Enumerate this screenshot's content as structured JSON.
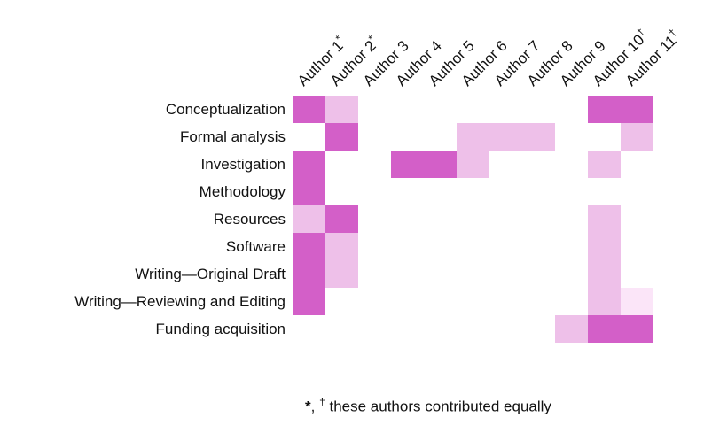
{
  "chart_data": {
    "type": "heatmap",
    "title": "",
    "columns": [
      {
        "name": "Author 1",
        "marker": "*"
      },
      {
        "name": "Author 2",
        "marker": "*"
      },
      {
        "name": "Author 3",
        "marker": ""
      },
      {
        "name": "Author 4",
        "marker": ""
      },
      {
        "name": "Author 5",
        "marker": ""
      },
      {
        "name": "Author 6",
        "marker": ""
      },
      {
        "name": "Author 7",
        "marker": ""
      },
      {
        "name": "Author 8",
        "marker": ""
      },
      {
        "name": "Author 9",
        "marker": ""
      },
      {
        "name": "Author 10",
        "marker": "†"
      },
      {
        "name": "Author 11",
        "marker": "†"
      }
    ],
    "rows": [
      "Conceptualization",
      "Formal analysis",
      "Investigation",
      "Methodology",
      "Resources",
      "Software",
      "Writing—Original Draft",
      "Writing—Reviewing and Editing",
      "Funding acquisition"
    ],
    "values": [
      [
        3,
        2,
        0,
        0,
        0,
        0,
        0,
        0,
        0,
        3,
        3
      ],
      [
        0,
        3,
        0,
        0,
        0,
        2,
        2,
        2,
        0,
        0,
        2
      ],
      [
        3,
        0,
        0,
        3,
        3,
        2,
        0,
        0,
        0,
        2,
        0
      ],
      [
        3,
        0,
        0,
        0,
        0,
        0,
        0,
        0,
        0,
        0,
        0
      ],
      [
        2,
        3,
        0,
        0,
        0,
        0,
        0,
        0,
        0,
        2,
        0
      ],
      [
        3,
        2,
        0,
        0,
        0,
        0,
        0,
        0,
        0,
        2,
        0
      ],
      [
        3,
        2,
        0,
        0,
        0,
        0,
        0,
        0,
        0,
        2,
        0
      ],
      [
        3,
        0,
        0,
        0,
        0,
        0,
        0,
        0,
        0,
        2,
        1
      ],
      [
        0,
        0,
        0,
        0,
        0,
        0,
        0,
        0,
        2,
        3,
        3
      ]
    ],
    "level_colors": [
      "#ffffff",
      "#fbe5f8",
      "#eec0e9",
      "#d35fc8"
    ],
    "footnote": {
      "star": "*",
      "separator": ", ",
      "dagger": "†",
      "text": "these authors contributed equally"
    }
  }
}
